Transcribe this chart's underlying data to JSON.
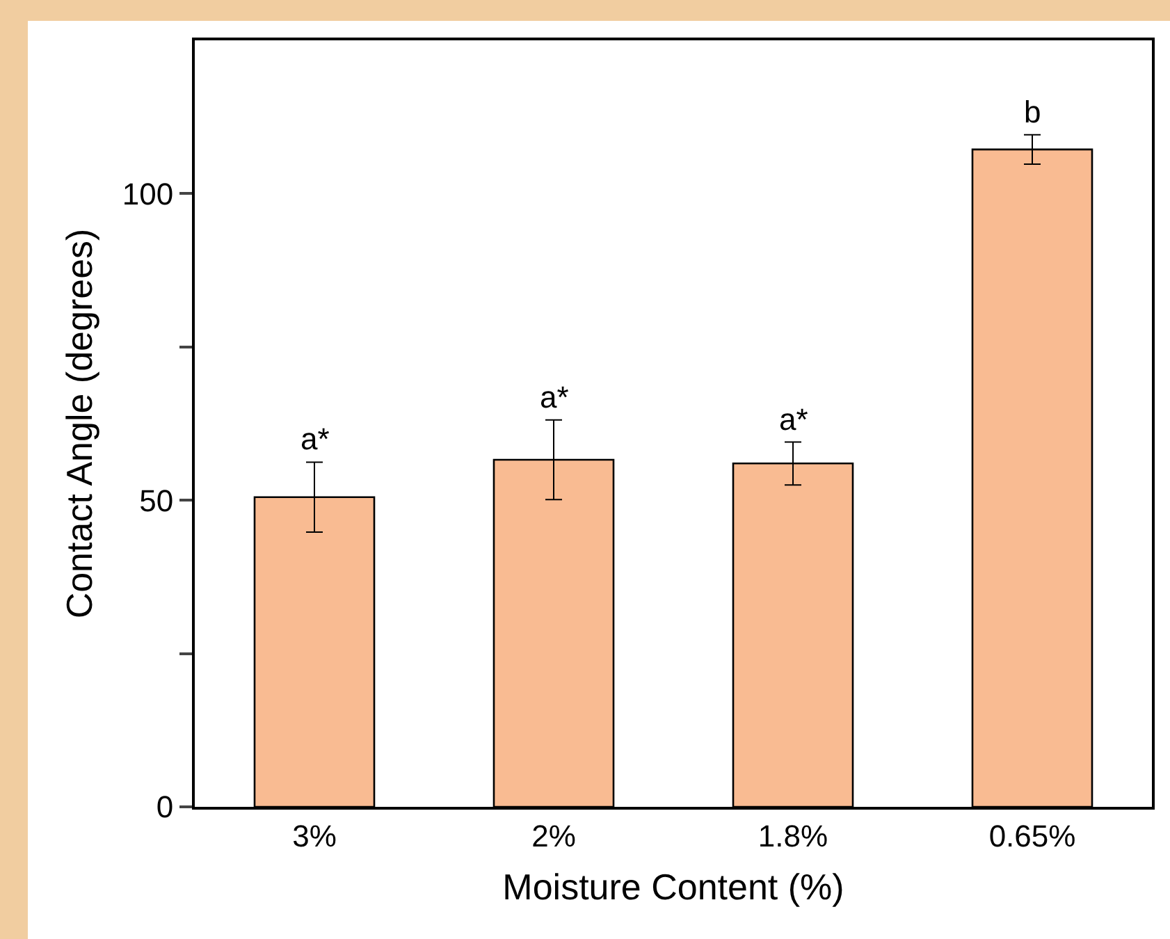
{
  "chart_data": {
    "type": "bar",
    "xlabel": "Moisture Content (%)",
    "ylabel": "Contact Angle (degrees)",
    "categories": [
      "3%",
      "2%",
      "1.8%",
      "0.65%"
    ],
    "values": [
      50.5,
      56.6,
      56.0,
      107.2
    ],
    "errors": [
      5.7,
      6.5,
      3.5,
      2.4
    ],
    "color": "#f9bb92",
    "ylim": [
      0,
      125
    ],
    "yticks": [
      0,
      {
        "value": 25,
        "label": null
      },
      50,
      {
        "value": 75,
        "label": null
      },
      100
    ],
    "grid": false,
    "annotations": [
      "a*",
      "a*",
      "a*",
      "b"
    ]
  }
}
